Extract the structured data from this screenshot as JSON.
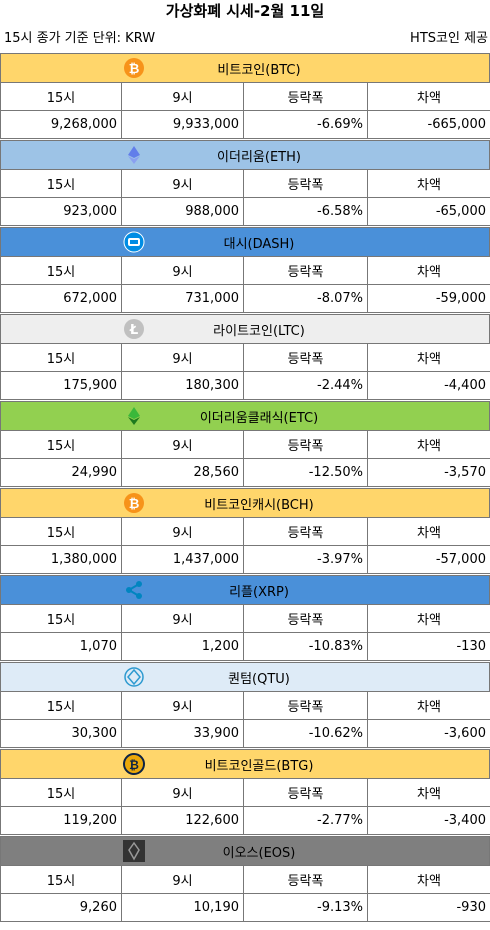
{
  "title": "가상화폐 시세-2월 11일",
  "subtitle_left": "15시 종가 기준   단위: KRW",
  "subtitle_right": "HTS코인 제공",
  "columns": [
    "15시",
    "9시",
    "등락폭",
    "차액"
  ],
  "coins": [
    {
      "name": "비트코인(BTC)",
      "color": "#ffd66b",
      "icon": "bitcoin-icon",
      "values": [
        "9,268,000",
        "9,933,000",
        "-6.69%",
        "-665,000"
      ]
    },
    {
      "name": "이더리움(ETH)",
      "color": "#9dc3e6",
      "icon": "ethereum-icon",
      "values": [
        "923,000",
        "988,000",
        "-6.58%",
        "-65,000"
      ]
    },
    {
      "name": "대시(DASH)",
      "color": "#4a90d9",
      "icon": "dash-icon",
      "values": [
        "672,000",
        "731,000",
        "-8.07%",
        "-59,000"
      ]
    },
    {
      "name": "라이트코인(LTC)",
      "color": "#eeeeee",
      "icon": "litecoin-icon",
      "values": [
        "175,900",
        "180,300",
        "-2.44%",
        "-4,400"
      ]
    },
    {
      "name": "이더리움클래식(ETC)",
      "color": "#92d050",
      "icon": "ethereum-classic-icon",
      "values": [
        "24,990",
        "28,560",
        "-12.50%",
        "-3,570"
      ]
    },
    {
      "name": "비트코인캐시(BCH)",
      "color": "#ffd66b",
      "icon": "bitcoin-cash-icon",
      "values": [
        "1,380,000",
        "1,437,000",
        "-3.97%",
        "-57,000"
      ]
    },
    {
      "name": "리플(XRP)",
      "color": "#4a90d9",
      "icon": "ripple-icon",
      "values": [
        "1,070",
        "1,200",
        "-10.83%",
        "-130"
      ]
    },
    {
      "name": "퀀텀(QTU)",
      "color": "#deebf7",
      "icon": "qtum-icon",
      "values": [
        "30,300",
        "33,900",
        "-10.62%",
        "-3,600"
      ]
    },
    {
      "name": "비트코인골드(BTG)",
      "color": "#ffd66b",
      "icon": "bitcoin-gold-icon",
      "values": [
        "119,200",
        "122,600",
        "-2.77%",
        "-3,400"
      ]
    },
    {
      "name": "이오스(EOS)",
      "color": "#7f7f7f",
      "icon": "eos-icon",
      "values": [
        "9,260",
        "10,190",
        "-9.13%",
        "-930"
      ]
    }
  ]
}
